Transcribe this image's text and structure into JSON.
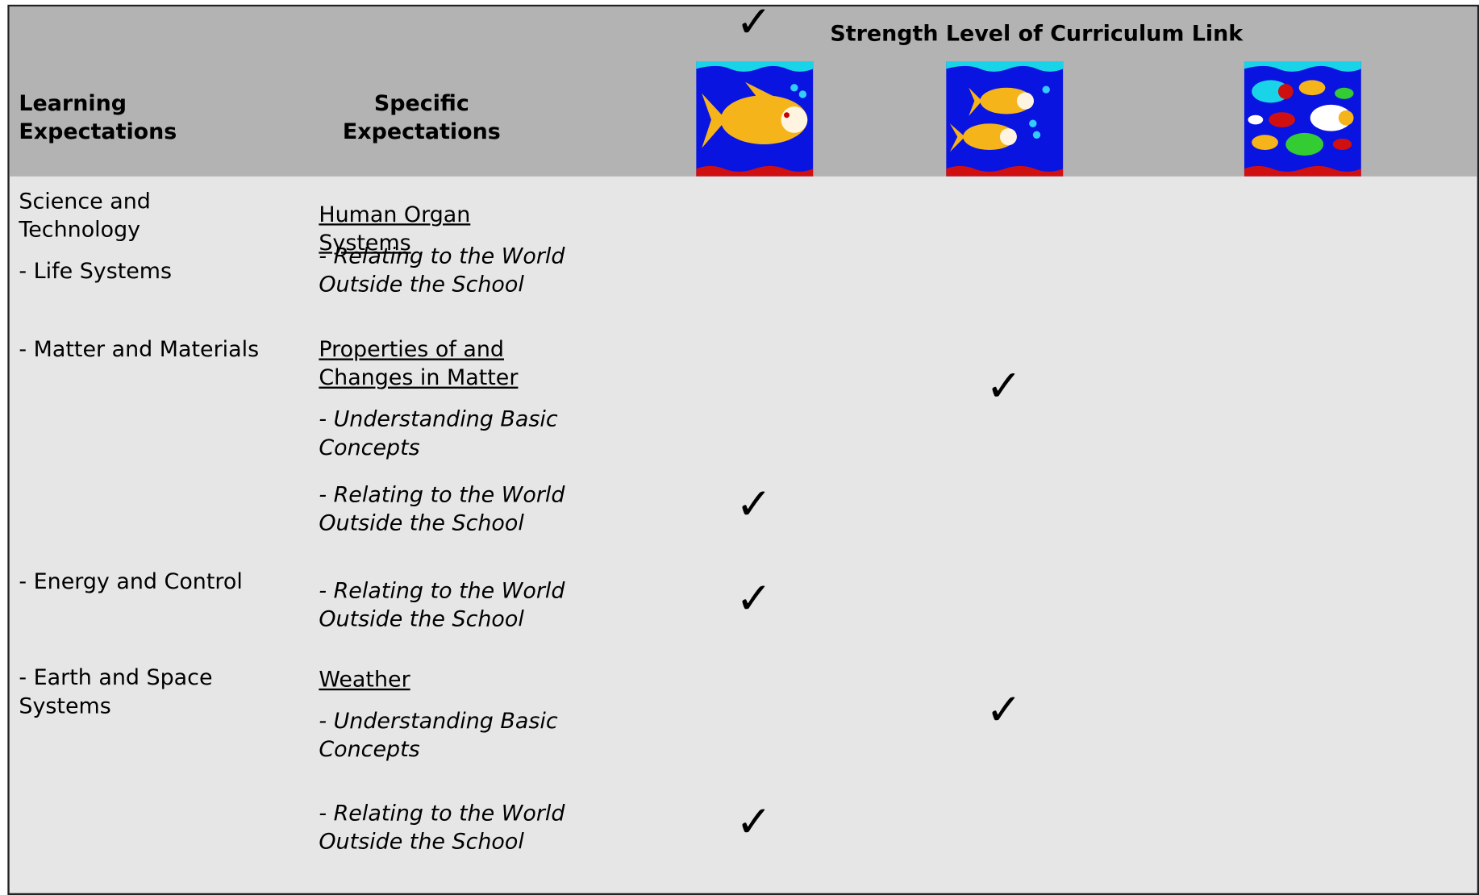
{
  "header": {
    "group_title": "Strength Level of Curriculum Link",
    "col1": "Learning Expectations",
    "col2": "Specific Expectations"
  },
  "learning": [
    "Science and Technology",
    "- Life Systems",
    "- Matter and Materials",
    "- Energy and Control",
    "- Earth and Space Systems"
  ],
  "specific": [
    {
      "text": "Human Organ Systems",
      "style": "topic"
    },
    {
      "text": "- Relating to the World Outside the School",
      "style": "sub",
      "level1": "✓"
    },
    {
      "text": "Properties of and Changes in Matter",
      "style": "topic"
    },
    {
      "text": "- Understanding Basic Concepts",
      "style": "sub",
      "level2": "✓"
    },
    {
      "text": "- Relating to the World Outside the School",
      "style": "sub",
      "level1": "✓"
    },
    {
      "text": "- Relating to the World Outside the School",
      "style": "sub",
      "level1": "✓"
    },
    {
      "text": "Weather",
      "style": "topic"
    },
    {
      "text": "- Understanding Basic Concepts",
      "style": "sub",
      "level2": "✓"
    },
    {
      "text": "- Relating to the World Outside the School",
      "style": "sub",
      "level1": "✓"
    }
  ]
}
